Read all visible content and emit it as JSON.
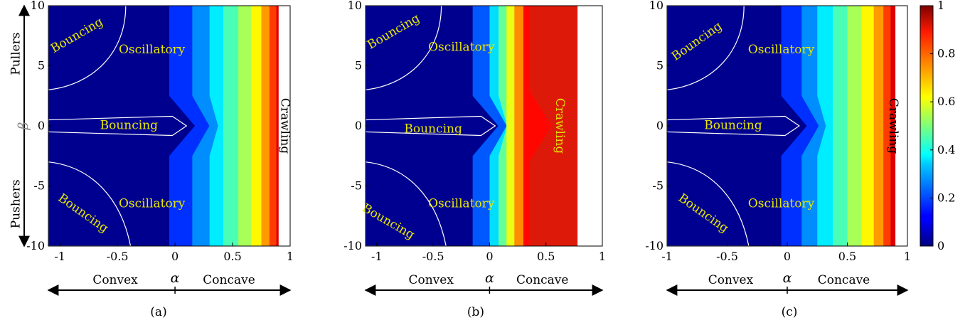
{
  "chart_data": [
    {
      "id": "a",
      "type": "heatmap",
      "subplot_label": "(a)",
      "xlim": [
        -1.1,
        1
      ],
      "ylim": [
        -10,
        10
      ],
      "xticks": [
        -1,
        -0.5,
        0,
        0.5,
        1
      ],
      "yticks": [
        -10,
        -5,
        0,
        5,
        10
      ],
      "xlabel": "α",
      "ylabel": "β",
      "x_arrow_left_label": "Convex",
      "x_arrow_right_label": "Concave",
      "y_arrow_top_label": "Pullers",
      "y_arrow_bottom_label": "Pushers",
      "regions": [
        {
          "label": "Bouncing",
          "x": -0.85,
          "y": 7.5,
          "rotation": -30
        },
        {
          "label": "Oscillatory",
          "x": -0.2,
          "y": 6.3,
          "rotation": 0
        },
        {
          "label": "Bouncing",
          "x": -0.4,
          "y": 0,
          "rotation": 0
        },
        {
          "label": "Oscillatory",
          "x": -0.2,
          "y": -6.5,
          "rotation": 0
        },
        {
          "label": "Bouncing",
          "x": -0.8,
          "y": -7.3,
          "rotation": 35
        },
        {
          "label": "Crawling",
          "x": 0.95,
          "y": 0,
          "rotation": 90,
          "color": "#000000"
        }
      ],
      "contour_bands_alpha": [
        -0.05,
        0.15,
        0.3,
        0.42,
        0.55,
        0.66,
        0.75,
        0.82,
        0.88
      ],
      "white_region_from_alpha": 0.9
    },
    {
      "id": "b",
      "type": "heatmap",
      "subplot_label": "(b)",
      "xlim": [
        -1.1,
        1
      ],
      "ylim": [
        -10,
        10
      ],
      "xticks": [
        -1,
        -0.5,
        0,
        0.5,
        1
      ],
      "yticks": [
        -10,
        -5,
        0,
        5,
        10
      ],
      "xlabel": "α",
      "x_arrow_left_label": "Convex",
      "x_arrow_right_label": "Concave",
      "regions": [
        {
          "label": "Bouncing",
          "x": -0.85,
          "y": 7.8,
          "rotation": -30
        },
        {
          "label": "Oscillatory",
          "x": -0.25,
          "y": 6.5,
          "rotation": 0
        },
        {
          "label": "Bouncing",
          "x": -0.5,
          "y": -0.3,
          "rotation": 0
        },
        {
          "label": "Oscillatory",
          "x": -0.25,
          "y": -6.5,
          "rotation": 0
        },
        {
          "label": "Bouncing",
          "x": -0.9,
          "y": -8,
          "rotation": 30
        },
        {
          "label": "Crawling",
          "x": 0.62,
          "y": 0,
          "rotation": 90,
          "color": "#e0e000"
        }
      ],
      "contour_bands_alpha": [
        -0.15,
        0.0,
        0.08,
        0.15,
        0.22,
        0.3
      ],
      "red_region_from_alpha": 0.35,
      "white_region_from_alpha": 0.78
    },
    {
      "id": "c",
      "type": "heatmap",
      "subplot_label": "(c)",
      "xlim": [
        -1,
        1
      ],
      "ylim": [
        -10,
        10
      ],
      "xticks": [
        -1,
        -0.5,
        0,
        0.5,
        1
      ],
      "yticks": [
        -10,
        -5,
        0,
        5,
        10
      ],
      "xlabel": "α",
      "x_arrow_left_label": "Convex",
      "x_arrow_right_label": "Concave",
      "regions": [
        {
          "label": "Bouncing",
          "x": -0.75,
          "y": 7,
          "rotation": -35
        },
        {
          "label": "Oscillatory",
          "x": -0.05,
          "y": 6.3,
          "rotation": 0
        },
        {
          "label": "Bouncing",
          "x": -0.45,
          "y": 0,
          "rotation": 0
        },
        {
          "label": "Oscillatory",
          "x": -0.05,
          "y": -6.5,
          "rotation": 0
        },
        {
          "label": "Bouncing",
          "x": -0.7,
          "y": -7.3,
          "rotation": 35
        },
        {
          "label": "Crawling",
          "x": 0.88,
          "y": 0,
          "rotation": 90,
          "color": "#000000"
        }
      ],
      "contour_bands_alpha": [
        -0.05,
        0.12,
        0.25,
        0.38,
        0.5,
        0.62,
        0.72,
        0.8,
        0.86
      ],
      "white_region_from_alpha": 0.9
    }
  ],
  "colorbar": {
    "range": [
      0,
      1
    ],
    "ticks": [
      0,
      0.2,
      0.4,
      0.6,
      0.8,
      1
    ],
    "colormap": "jet"
  }
}
